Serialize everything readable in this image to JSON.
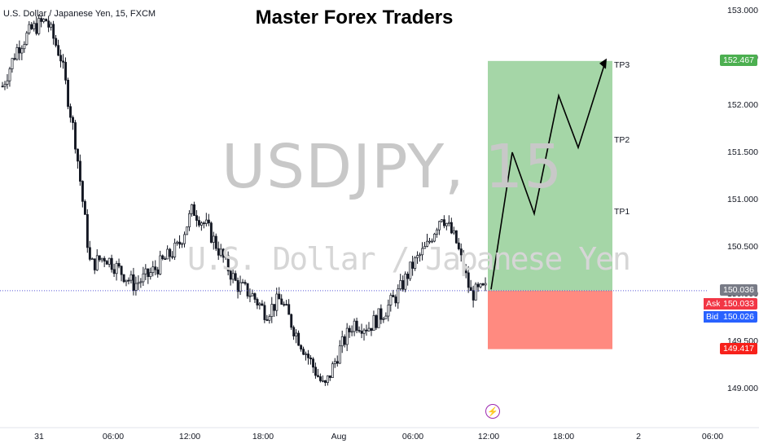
{
  "header": {
    "title": "Master Forex Traders",
    "symbol_info": "U.S. Dollar / Japanese Yen, 15, FXCM"
  },
  "watermark": {
    "ticker": "USDJPY, 15",
    "name": "U.S. Dollar / Japanese Yen"
  },
  "price_axis": {
    "ticks": [
      "153.000",
      "152.500",
      "152.000",
      "151.500",
      "151.000",
      "150.500",
      "150.000",
      "149.500",
      "149.000"
    ],
    "current_price": "150.036",
    "ask_label": "Ask",
    "ask_value": "150.033",
    "bid_label": "Bid",
    "bid_value": "150.026",
    "tp_price": "152.467",
    "sl_price": "149.417"
  },
  "time_axis": {
    "ticks": [
      "31",
      "06:00",
      "12:00",
      "18:00",
      "Aug",
      "06:00",
      "12:00",
      "18:00",
      "2",
      "06:00"
    ]
  },
  "targets": {
    "tp1": "TP1",
    "tp2": "TP2",
    "tp3": "TP3"
  },
  "colors": {
    "up_candle": "#131722",
    "profit_zone": "#a5d6a7",
    "loss_zone": "#ff8a80",
    "current_price_bg": "#787b86",
    "ask_bg": "#f23645",
    "bid_bg": "#2962ff",
    "tp_bg": "#4caf50",
    "sl_bg": "#f7211b"
  },
  "chart_data": {
    "type": "candlestick",
    "symbol": "USDJPY",
    "timeframe": "15",
    "ylim": [
      148.7,
      153.05
    ],
    "position": {
      "type": "long",
      "entry": 150.036,
      "take_profit": 152.467,
      "stop_loss": 149.417
    },
    "projection_path": [
      150.05,
      151.5,
      150.85,
      152.1,
      151.55,
      152.45
    ],
    "series": [
      {
        "name": "price",
        "close_path": [
          152.2,
          152.6,
          152.8,
          152.9,
          152.5,
          151.6,
          150.3,
          150.4,
          150.25,
          150.1,
          150.2,
          150.35,
          150.5,
          150.9,
          150.7,
          150.4,
          150.1,
          150.0,
          149.8,
          149.95,
          149.6,
          149.3,
          149.0,
          149.4,
          149.7,
          149.65,
          149.8,
          150.0,
          150.3,
          150.5,
          150.85,
          150.55,
          150.0,
          150.05
        ]
      }
    ]
  }
}
